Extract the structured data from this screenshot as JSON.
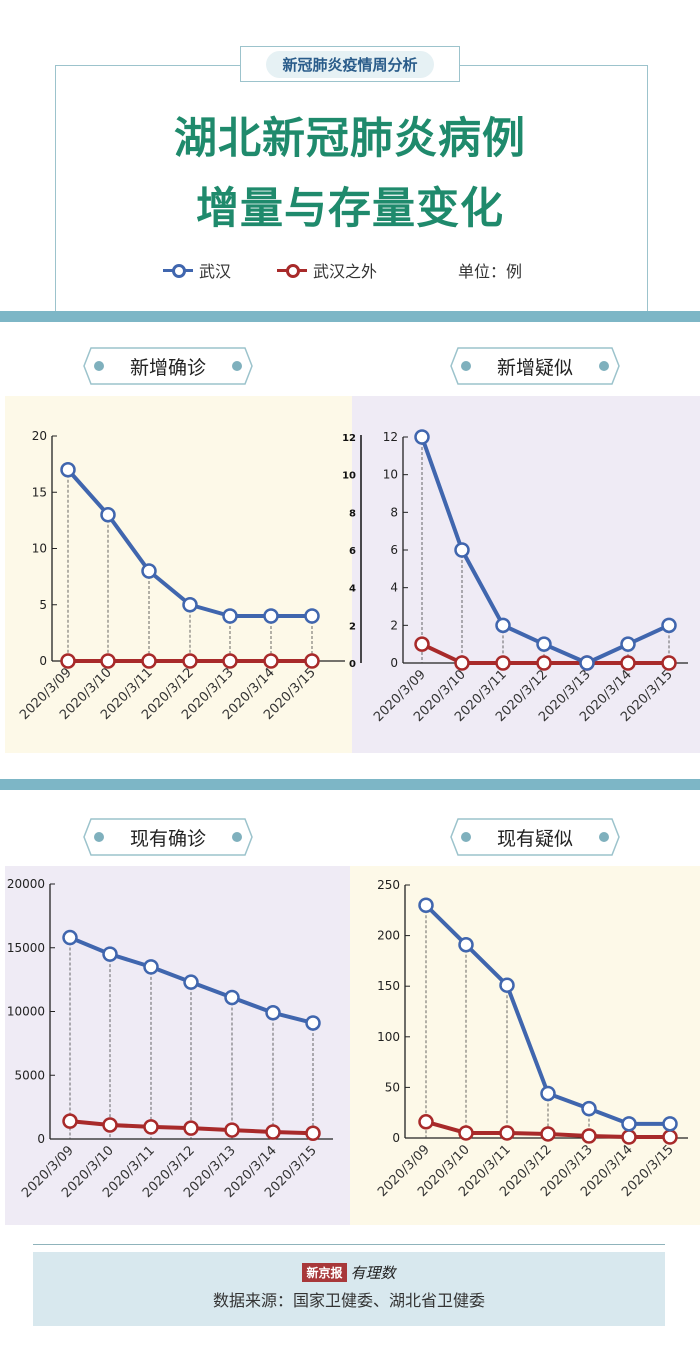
{
  "header": {
    "tag": "新冠肺炎疫情周分析",
    "title_line1": "湖北新冠肺炎病例",
    "title_line2": "增量与存量变化",
    "legend": [
      {
        "label": "武汉",
        "color": "#4066ae"
      },
      {
        "label": "武汉之外",
        "color": "#a82a2a"
      }
    ],
    "unit": "单位：例"
  },
  "footer": {
    "logo_left": "新京报",
    "logo_right": "有理数",
    "source": "数据来源：国家卫健委、湖北省卫健委"
  },
  "colors": {
    "wuhan": "#4066ae",
    "outside": "#a82a2a",
    "accent": "#1f8a6c",
    "band": "#7db6c6",
    "panel_yellow": "#fdf9e8",
    "panel_purple": "#efebf5"
  },
  "chart_data": [
    {
      "type": "line",
      "title": "新增确诊",
      "categories": [
        "2020/3/09",
        "2020/3/10",
        "2020/3/11",
        "2020/3/12",
        "2020/3/13",
        "2020/3/14",
        "2020/3/15"
      ],
      "yticks": [
        0,
        5,
        10,
        15,
        20
      ],
      "ylim": [
        0,
        20
      ],
      "series": [
        {
          "name": "武汉",
          "values": [
            17,
            13,
            8,
            5,
            4,
            4,
            4
          ]
        },
        {
          "name": "武汉之外",
          "values": [
            0,
            0,
            0,
            0,
            0,
            0,
            0
          ]
        }
      ]
    },
    {
      "type": "line",
      "title": "新增疑似",
      "categories": [
        "2020/3/09",
        "2020/3/10",
        "2020/3/11",
        "2020/3/12",
        "2020/3/13",
        "2020/3/14",
        "2020/3/15"
      ],
      "yticks": [
        0,
        2,
        4,
        6,
        8,
        10,
        12
      ],
      "ylim": [
        0,
        12
      ],
      "extra_axis_ticks": [
        0,
        2,
        4,
        6,
        8,
        10,
        12
      ],
      "series": [
        {
          "name": "武汉",
          "values": [
            12,
            6,
            2,
            1,
            0,
            1,
            2
          ]
        },
        {
          "name": "武汉之外",
          "values": [
            1,
            0,
            0,
            0,
            0,
            0,
            0
          ]
        }
      ]
    },
    {
      "type": "line",
      "title": "现有确诊",
      "categories": [
        "2020/3/09",
        "2020/3/10",
        "2020/3/11",
        "2020/3/12",
        "2020/3/13",
        "2020/3/14",
        "2020/3/15"
      ],
      "yticks": [
        0,
        5000,
        10000,
        15000,
        20000
      ],
      "ylim": [
        0,
        20000
      ],
      "series": [
        {
          "name": "武汉",
          "values": [
            15800,
            14500,
            13500,
            12300,
            11100,
            9900,
            9100
          ]
        },
        {
          "name": "武汉之外",
          "values": [
            1400,
            1100,
            950,
            850,
            700,
            550,
            450
          ]
        }
      ]
    },
    {
      "type": "line",
      "title": "现有疑似",
      "categories": [
        "2020/3/09",
        "2020/3/10",
        "2020/3/11",
        "2020/3/12",
        "2020/3/13",
        "2020/3/14",
        "2020/3/15"
      ],
      "yticks": [
        0,
        50,
        100,
        150,
        200,
        250
      ],
      "ylim": [
        0,
        250
      ],
      "series": [
        {
          "name": "武汉",
          "values": [
            230,
            191,
            151,
            44,
            29,
            14,
            14
          ]
        },
        {
          "name": "武汉之外",
          "values": [
            16,
            5,
            5,
            4,
            2,
            1,
            1
          ]
        }
      ]
    }
  ]
}
